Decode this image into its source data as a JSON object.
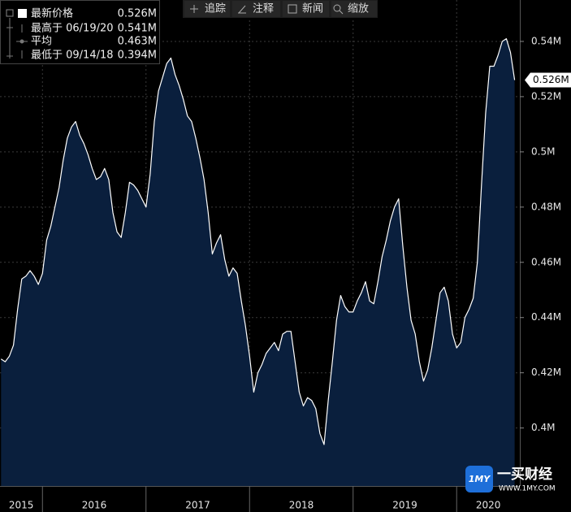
{
  "chart_data": {
    "type": "area",
    "color": "#ffffff",
    "fill": "#0a1f3d",
    "grid": true,
    "legend_title": "最新价格",
    "last": {
      "value": 0.526,
      "label": "0.526M"
    },
    "stats": [
      {
        "label": "最高于 06/19/20",
        "value": "0.541M"
      },
      {
        "label": "平均",
        "value": "0.463M"
      },
      {
        "label": "最低于 09/14/18",
        "value": "0.394M"
      }
    ],
    "xlim": [
      2015.59,
      2020.61
    ],
    "xticks": [
      2015,
      2016,
      2017,
      2018,
      2019,
      2020
    ],
    "ylim": [
      0.379,
      0.555
    ],
    "yticks": [
      {
        "value": 0.4,
        "label": "0.4M"
      },
      {
        "value": 0.42,
        "label": "0.42M"
      },
      {
        "value": 0.44,
        "label": "0.44M"
      },
      {
        "value": 0.46,
        "label": "0.46M"
      },
      {
        "value": 0.48,
        "label": "0.48M"
      },
      {
        "value": 0.5,
        "label": "0.5M"
      },
      {
        "value": 0.52,
        "label": "0.52M"
      },
      {
        "value": 0.54,
        "label": "0.54M"
      }
    ],
    "x": [
      2015.6,
      2015.64,
      2015.68,
      2015.72,
      2015.76,
      2015.8,
      2015.84,
      2015.88,
      2015.92,
      2015.96,
      2016,
      2016.04,
      2016.08,
      2016.12,
      2016.16,
      2016.2,
      2016.24,
      2016.28,
      2016.32,
      2016.36,
      2016.4,
      2016.44,
      2016.48,
      2016.52,
      2016.56,
      2016.6,
      2016.64,
      2016.68,
      2016.72,
      2016.76,
      2016.8,
      2016.84,
      2016.88,
      2016.92,
      2016.96,
      2017,
      2017.04,
      2017.08,
      2017.12,
      2017.16,
      2017.2,
      2017.24,
      2017.28,
      2017.32,
      2017.36,
      2017.4,
      2017.44,
      2017.48,
      2017.52,
      2017.56,
      2017.6,
      2017.64,
      2017.68,
      2017.72,
      2017.76,
      2017.8,
      2017.84,
      2017.88,
      2017.92,
      2017.96,
      2018,
      2018.04,
      2018.08,
      2018.12,
      2018.16,
      2018.2,
      2018.24,
      2018.28,
      2018.32,
      2018.36,
      2018.4,
      2018.44,
      2018.48,
      2018.52,
      2018.56,
      2018.6,
      2018.64,
      2018.68,
      2018.72,
      2018.76,
      2018.8,
      2018.84,
      2018.88,
      2018.92,
      2018.96,
      2019,
      2019.04,
      2019.08,
      2019.12,
      2019.16,
      2019.2,
      2019.24,
      2019.28,
      2019.32,
      2019.36,
      2019.4,
      2019.44,
      2019.48,
      2019.52,
      2019.56,
      2019.6,
      2019.64,
      2019.68,
      2019.72,
      2019.76,
      2019.8,
      2019.84,
      2019.88,
      2019.92,
      2019.96,
      2020,
      2020.04,
      2020.08,
      2020.12,
      2020.16,
      2020.2,
      2020.24,
      2020.28,
      2020.32,
      2020.36,
      2020.4,
      2020.44,
      2020.48,
      2020.52,
      2020.56
    ],
    "values": [
      0.425,
      0.424,
      0.426,
      0.43,
      0.443,
      0.454,
      0.455,
      0.457,
      0.455,
      0.452,
      0.456,
      0.468,
      0.473,
      0.48,
      0.487,
      0.497,
      0.505,
      0.509,
      0.511,
      0.506,
      0.503,
      0.499,
      0.494,
      0.49,
      0.491,
      0.494,
      0.49,
      0.478,
      0.471,
      0.469,
      0.478,
      0.489,
      0.488,
      0.486,
      0.483,
      0.48,
      0.492,
      0.511,
      0.522,
      0.527,
      0.532,
      0.534,
      0.528,
      0.524,
      0.519,
      0.513,
      0.511,
      0.505,
      0.498,
      0.49,
      0.478,
      0.463,
      0.467,
      0.47,
      0.461,
      0.455,
      0.458,
      0.456,
      0.446,
      0.437,
      0.426,
      0.413,
      0.42,
      0.423,
      0.427,
      0.429,
      0.431,
      0.428,
      0.434,
      0.435,
      0.435,
      0.424,
      0.413,
      0.408,
      0.411,
      0.41,
      0.407,
      0.398,
      0.394,
      0.41,
      0.424,
      0.439,
      0.448,
      0.444,
      0.442,
      0.442,
      0.446,
      0.449,
      0.453,
      0.446,
      0.445,
      0.453,
      0.462,
      0.468,
      0.475,
      0.48,
      0.483,
      0.466,
      0.451,
      0.439,
      0.434,
      0.424,
      0.417,
      0.421,
      0.429,
      0.439,
      0.449,
      0.451,
      0.446,
      0.434,
      0.429,
      0.431,
      0.44,
      0.443,
      0.447,
      0.46,
      0.488,
      0.514,
      0.531,
      0.531,
      0.535,
      0.54,
      0.541,
      0.536,
      0.526
    ]
  },
  "toolbar": [
    "追踪",
    "注释",
    "新闻",
    "缩放"
  ],
  "watermark": {
    "logo": "1MY",
    "name": "一买财经",
    "url": "WWW.1MY.COM"
  }
}
